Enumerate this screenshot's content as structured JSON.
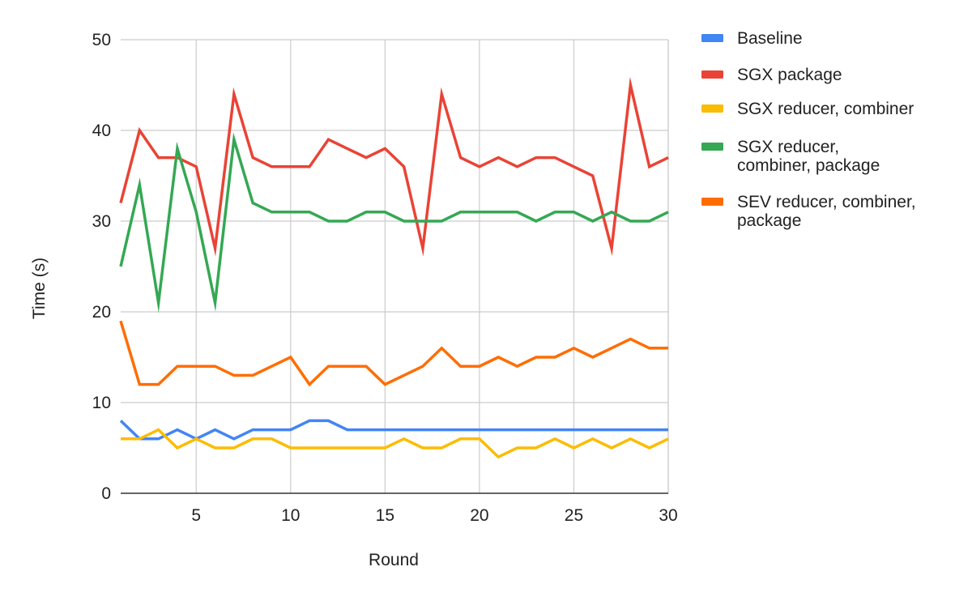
{
  "chart_data": {
    "type": "line",
    "title": "",
    "xlabel": "Round",
    "ylabel": "Time (s)",
    "xlim": [
      1,
      30
    ],
    "ylim": [
      0,
      50
    ],
    "x_ticks": [
      5,
      10,
      15,
      20,
      25,
      30
    ],
    "y_ticks": [
      0,
      10,
      20,
      30,
      40,
      50
    ],
    "grid": true,
    "legend_position": "right",
    "x": [
      1,
      2,
      3,
      4,
      5,
      6,
      7,
      8,
      9,
      10,
      11,
      12,
      13,
      14,
      15,
      16,
      17,
      18,
      19,
      20,
      21,
      22,
      23,
      24,
      25,
      26,
      27,
      28,
      29,
      30
    ],
    "series": [
      {
        "name": "Baseline",
        "legend_lines": [
          "Baseline"
        ],
        "color": "#4285f4",
        "values": [
          8,
          6,
          6,
          7,
          6,
          7,
          6,
          7,
          7,
          7,
          8,
          8,
          7,
          7,
          7,
          7,
          7,
          7,
          7,
          7,
          7,
          7,
          7,
          7,
          7,
          7,
          7,
          7,
          7,
          7
        ]
      },
      {
        "name": "SGX package",
        "legend_lines": [
          "SGX package"
        ],
        "color": "#ea4335",
        "values": [
          32,
          40,
          37,
          37,
          36,
          27,
          44,
          37,
          36,
          36,
          36,
          39,
          38,
          37,
          38,
          36,
          27,
          44,
          37,
          36,
          37,
          36,
          37,
          37,
          36,
          35,
          27,
          45,
          36,
          37
        ]
      },
      {
        "name": "SGX reducer, combiner",
        "legend_lines": [
          "SGX reducer, combiner"
        ],
        "color": "#fbbc04",
        "values": [
          6,
          6,
          7,
          5,
          6,
          5,
          5,
          6,
          6,
          5,
          5,
          5,
          5,
          5,
          5,
          6,
          5,
          5,
          6,
          6,
          4,
          5,
          5,
          6,
          5,
          6,
          5,
          6,
          5,
          6
        ]
      },
      {
        "name": "SGX reducer, combiner, package",
        "legend_lines": [
          "SGX reducer,",
          "combiner, package"
        ],
        "color": "#34a853",
        "values": [
          25,
          34,
          21,
          38,
          31,
          21,
          39,
          32,
          31,
          31,
          31,
          30,
          30,
          31,
          31,
          30,
          30,
          30,
          31,
          31,
          31,
          31,
          30,
          31,
          31,
          30,
          31,
          30,
          30,
          31
        ]
      },
      {
        "name": "SEV reducer, combiner, package",
        "legend_lines": [
          "SEV reducer, combiner,",
          "package"
        ],
        "color": "#ff6d01",
        "values": [
          19,
          12,
          12,
          14,
          14,
          14,
          13,
          13,
          14,
          15,
          12,
          14,
          14,
          14,
          12,
          13,
          14,
          16,
          14,
          14,
          15,
          14,
          15,
          15,
          16,
          15,
          16,
          17,
          16,
          16
        ]
      }
    ]
  }
}
